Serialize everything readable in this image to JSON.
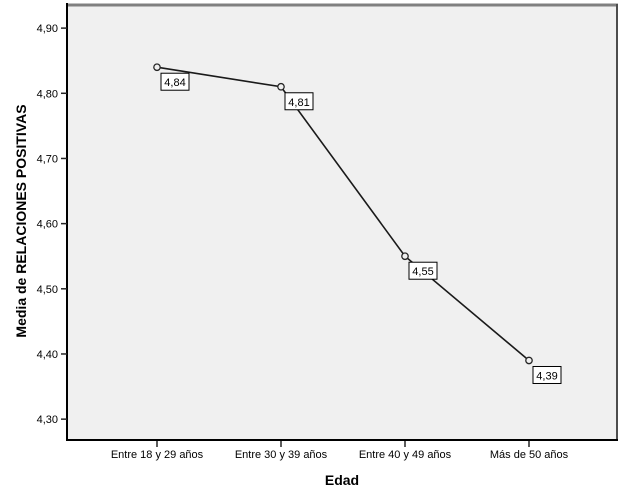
{
  "chart_data": {
    "type": "line",
    "title": "",
    "xlabel": "Edad",
    "ylabel": "Media de RELACIONES POSITIVAS",
    "categories": [
      "Entre 18 y 29 años",
      "Entre 30 y 39 años",
      "Entre 40 y 49 años",
      "Más de 50 años"
    ],
    "values": [
      4.84,
      4.81,
      4.55,
      4.39
    ],
    "point_labels": [
      "4,84",
      "4,81",
      "4,55",
      "4,39"
    ],
    "y_ticks": [
      {
        "value": 4.9,
        "label": "4,90"
      },
      {
        "value": 4.8,
        "label": "4,80"
      },
      {
        "value": 4.7,
        "label": "4,70"
      },
      {
        "value": 4.6,
        "label": "4,60"
      },
      {
        "value": 4.5,
        "label": "4,50"
      },
      {
        "value": 4.4,
        "label": "4,40"
      },
      {
        "value": 4.3,
        "label": "4,30"
      }
    ],
    "ylim": [
      4.268,
      4.937
    ],
    "grid": false,
    "legend": "none",
    "marker": "open-circle",
    "decimal_separator": ",",
    "colors": {
      "page_bg": "#ffffff",
      "plot_bg": "#f0f0f0",
      "frame_top": "#808080",
      "frame_right": "#4d4d4d",
      "axis": "#000000",
      "tick": "#262626",
      "line": "#1a1a1a",
      "marker_stroke": "#262626",
      "label_box_bg": "#ffffff",
      "label_box_border": "#000000",
      "text": "#000000"
    }
  }
}
